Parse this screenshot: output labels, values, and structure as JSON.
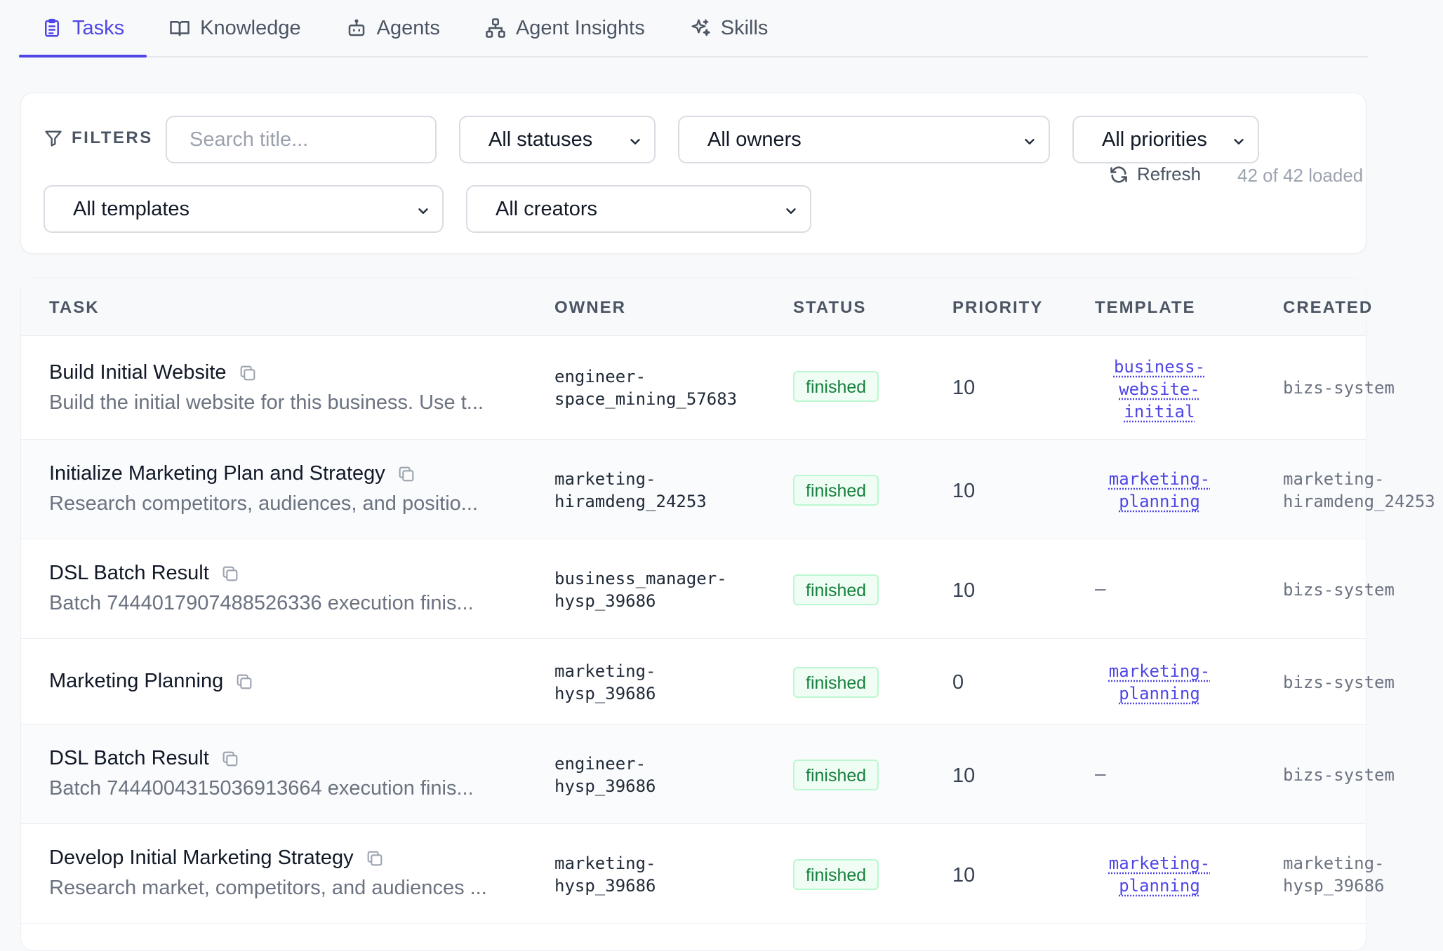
{
  "tabs": [
    {
      "label": "Tasks",
      "icon": "clipboard-icon",
      "active": true
    },
    {
      "label": "Knowledge",
      "icon": "book-icon",
      "active": false
    },
    {
      "label": "Agents",
      "icon": "bot-icon",
      "active": false
    },
    {
      "label": "Agent Insights",
      "icon": "network-icon",
      "active": false
    },
    {
      "label": "Skills",
      "icon": "sparkles-icon",
      "active": false
    }
  ],
  "filters": {
    "label": "FILTERS",
    "search_placeholder": "Search title...",
    "status": "All statuses",
    "owner": "All owners",
    "priority": "All priorities",
    "template": "All templates",
    "creator": "All creators",
    "refresh_label": "Refresh",
    "loaded_text": "42 of 42 loaded"
  },
  "table": {
    "columns": [
      "TASK",
      "OWNER",
      "STATUS",
      "PRIORITY",
      "TEMPLATE",
      "CREATED"
    ],
    "rows": [
      {
        "title": "Build Initial Website",
        "desc": "Build the initial website for this business. Use t...",
        "owner": "engineer-\nspace_mining_57683",
        "status": "finished",
        "priority": "10",
        "template": [
          "business-",
          "website-",
          "initial"
        ],
        "created": "bizs-system"
      },
      {
        "title": "Initialize Marketing Plan and Strategy",
        "desc": "Research competitors, audiences, and positio...",
        "owner": "marketing-\nhiramdeng_24253",
        "status": "finished",
        "priority": "10",
        "template": [
          "marketing-",
          "planning"
        ],
        "created": "marketing-\nhiramdeng_24253"
      },
      {
        "title": "DSL Batch Result",
        "desc": "Batch 7444017907488526336 execution finis...",
        "owner": "business_manager-\nhysp_39686",
        "status": "finished",
        "priority": "10",
        "template": [],
        "template_empty": "–",
        "created": "bizs-system"
      },
      {
        "title": "Marketing Planning",
        "desc": "",
        "owner": "marketing-\nhysp_39686",
        "status": "finished",
        "priority": "0",
        "template": [
          "marketing-",
          "planning"
        ],
        "created": "bizs-system"
      },
      {
        "title": "DSL Batch Result",
        "desc": "Batch 7444004315036913664 execution finis...",
        "owner": "engineer-\nhysp_39686",
        "status": "finished",
        "priority": "10",
        "template": [],
        "template_empty": "–",
        "created": "bizs-system"
      },
      {
        "title": "Develop Initial Marketing Strategy",
        "desc": "Research market, competitors, and audiences ...",
        "owner": "marketing-\nhysp_39686",
        "status": "finished",
        "priority": "10",
        "template": [
          "marketing-",
          "planning"
        ],
        "created": "marketing-\nhysp_39686"
      }
    ]
  },
  "colors": {
    "accent": "#4f46e5",
    "status_finished_text": "#15803d",
    "status_finished_bg": "#f0fdf4",
    "status_finished_border": "#bbf7d0"
  }
}
